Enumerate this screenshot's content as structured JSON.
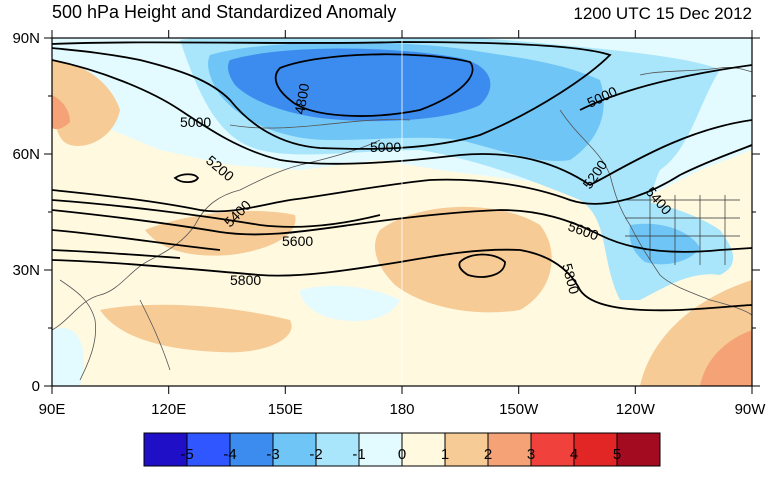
{
  "header": {
    "title": "500 hPa Height and Standardized Anomaly",
    "valid_time": "1200 UTC 15 Dec 2012"
  },
  "map": {
    "lat_labels": [
      "90N",
      "60N",
      "30N",
      "0"
    ],
    "lon_labels": [
      "90E",
      "120E",
      "150E",
      "180",
      "150W",
      "120W",
      "90W"
    ],
    "contour_labels": [
      "5000",
      "5000",
      "4800",
      "5200",
      "5400",
      "5600",
      "5800",
      "5000",
      "5200",
      "5400",
      "5600",
      "5800"
    ]
  },
  "colorbar": {
    "labels": [
      "-5",
      "-4",
      "-3",
      "-2",
      "-1",
      "0",
      "1",
      "2",
      "3",
      "4",
      "5"
    ],
    "colors": [
      "#1f10c8",
      "#2f56ff",
      "#3c8cf0",
      "#6fc5f5",
      "#a9e6fb",
      "#e3fbff",
      "#fff9e0",
      "#f6cb96",
      "#f5a277",
      "#f1413c",
      "#e22626",
      "#a30b21"
    ]
  }
}
